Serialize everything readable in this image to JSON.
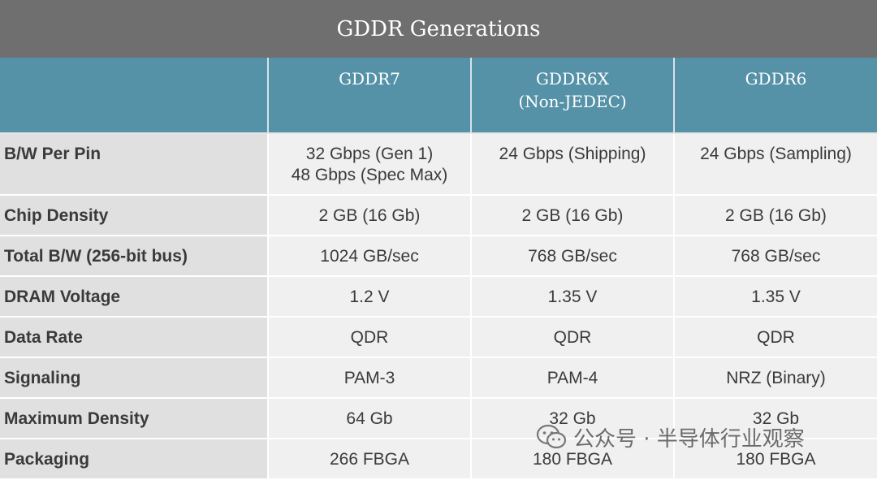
{
  "title": "GDDR Generations",
  "columns": [
    {
      "name": "GDDR7",
      "note": ""
    },
    {
      "name": "GDDR6X",
      "note": "(Non-JEDEC)"
    },
    {
      "name": "GDDR6",
      "note": ""
    }
  ],
  "rows": [
    {
      "label": "B/W Per Pin",
      "values": [
        [
          "32 Gbps (Gen 1)",
          "48 Gbps (Spec Max)"
        ],
        [
          "24 Gbps (Shipping)"
        ],
        [
          "24 Gbps (Sampling)"
        ]
      ]
    },
    {
      "label": "Chip Density",
      "values": [
        [
          "2 GB (16 Gb)"
        ],
        [
          "2 GB (16 Gb)"
        ],
        [
          "2 GB (16 Gb)"
        ]
      ]
    },
    {
      "label": "Total B/W (256-bit bus)",
      "values": [
        [
          "1024 GB/sec"
        ],
        [
          "768 GB/sec"
        ],
        [
          "768 GB/sec"
        ]
      ]
    },
    {
      "label": "DRAM Voltage",
      "values": [
        [
          "1.2 V"
        ],
        [
          "1.35 V"
        ],
        [
          "1.35 V"
        ]
      ]
    },
    {
      "label": "Data Rate",
      "values": [
        [
          "QDR"
        ],
        [
          "QDR"
        ],
        [
          "QDR"
        ]
      ]
    },
    {
      "label": "Signaling",
      "values": [
        [
          "PAM-3"
        ],
        [
          "PAM-4"
        ],
        [
          "NRZ (Binary)"
        ]
      ]
    },
    {
      "label": "Maximum Density",
      "values": [
        [
          "64 Gb"
        ],
        [
          "32 Gb"
        ],
        [
          "32 Gb"
        ]
      ]
    },
    {
      "label": "Packaging",
      "values": [
        [
          "266 FBGA"
        ],
        [
          "180 FBGA"
        ],
        [
          "180 FBGA"
        ]
      ]
    }
  ],
  "watermark": "公众号 · 半导体行业观察",
  "chart_data": {
    "type": "table",
    "title": "GDDR Generations",
    "columns": [
      "GDDR7",
      "GDDR6X (Non-JEDEC)",
      "GDDR6"
    ],
    "rows": [
      [
        "B/W Per Pin",
        "32 Gbps (Gen 1) / 48 Gbps (Spec Max)",
        "24 Gbps (Shipping)",
        "24 Gbps (Sampling)"
      ],
      [
        "Chip Density",
        "2 GB (16 Gb)",
        "2 GB (16 Gb)",
        "2 GB (16 Gb)"
      ],
      [
        "Total B/W (256-bit bus)",
        "1024 GB/sec",
        "768 GB/sec",
        "768 GB/sec"
      ],
      [
        "DRAM Voltage",
        "1.2 V",
        "1.35 V",
        "1.35 V"
      ],
      [
        "Data Rate",
        "QDR",
        "QDR",
        "QDR"
      ],
      [
        "Signaling",
        "PAM-3",
        "PAM-4",
        "NRZ (Binary)"
      ],
      [
        "Maximum Density",
        "64 Gb",
        "32 Gb",
        "32 Gb"
      ],
      [
        "Packaging",
        "266 FBGA",
        "180 FBGA",
        "180 FBGA"
      ]
    ]
  }
}
